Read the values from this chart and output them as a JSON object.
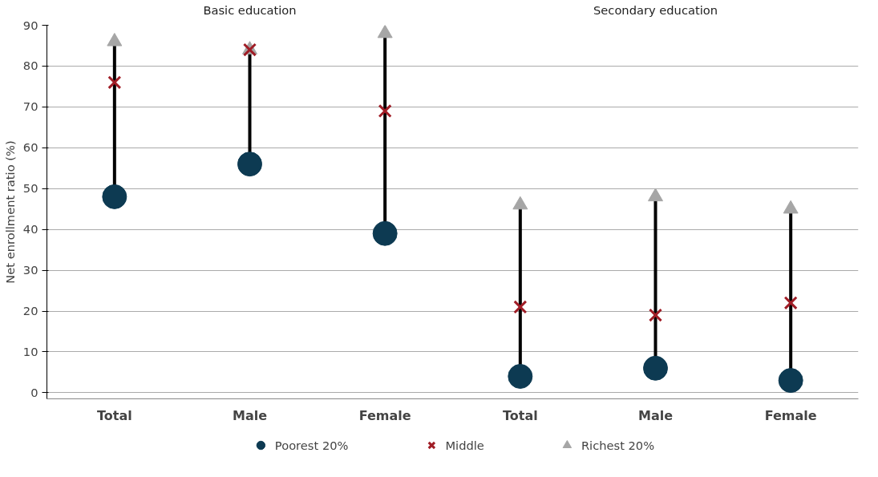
{
  "chart_data": {
    "type": "scatter",
    "ylabel": "Net enrollment ratio (%)",
    "categories": [
      "Total",
      "Male",
      "Female",
      "Total",
      "Male",
      "Female"
    ],
    "annotations": [
      "Basic education",
      "Secondary education"
    ],
    "series": [
      {
        "name": "Poorest 20%",
        "color": "#0d3a52",
        "marker": "circle",
        "values": [
          48,
          56,
          39,
          4,
          6,
          3
        ]
      },
      {
        "name": "Middle",
        "color": "#a01d26",
        "marker": "cross",
        "values": [
          76,
          84,
          69,
          21,
          19,
          22
        ]
      },
      {
        "name": "Richest 20%",
        "color": "#a6a6a6",
        "marker": "triangle",
        "values": [
          86,
          84,
          88,
          46,
          48,
          45
        ]
      }
    ],
    "ylim": [
      -1.5,
      90
    ],
    "yticks": [
      0,
      10,
      20,
      30,
      40,
      50,
      60,
      70,
      80,
      90
    ],
    "grid": "y",
    "legend": "bottom"
  }
}
